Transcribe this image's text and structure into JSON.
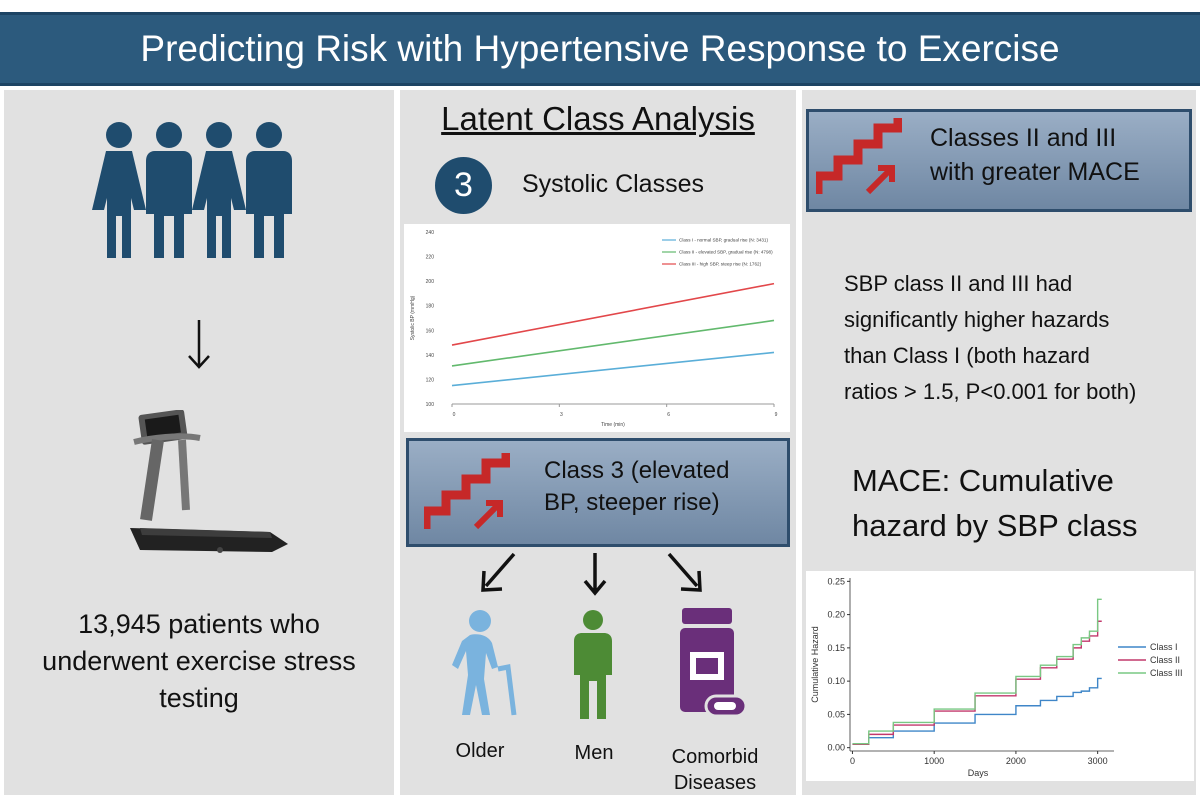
{
  "header": {
    "title": "Predicting Risk with Hypertensive Response to Exercise"
  },
  "left": {
    "caption_lines": [
      "13,945 patients who",
      "underwent exercise stress",
      "testing"
    ]
  },
  "middle": {
    "heading": "Latent Class Analysis",
    "class_count": "3",
    "class_label": "Systolic Classes",
    "callout_lines": [
      "Class 3 (elevated",
      "BP, steeper rise)"
    ],
    "groups": [
      "Older",
      "Men",
      "Comorbid",
      "Diseases"
    ]
  },
  "right": {
    "callout_lines": [
      "Classes II and III",
      "with greater MACE"
    ],
    "findings_lines": [
      "SBP class II and III had",
      "significantly higher hazards",
      "than Class I (both hazard",
      "ratios > 1.5, P<0.001 for both)"
    ],
    "chart_heading_lines": [
      "MACE: Cumulative",
      "hazard by SBP class"
    ]
  },
  "colors": {
    "banner": "#2c5a7d",
    "class1": "#5aaed8",
    "class2": "#62b96d",
    "class3": "#e2474a",
    "hz1": "#3f86c8",
    "hz2": "#c2386c",
    "hz3": "#79c883"
  },
  "chart_data": [
    {
      "type": "line",
      "title": "",
      "xlabel": "Time (min)",
      "ylabel": "Systolic BP (mmHg)",
      "x_ticks": [
        "0",
        "3",
        "6",
        "9"
      ],
      "y_ticks": [
        "100",
        "120",
        "140",
        "160",
        "180",
        "200",
        "220",
        "240"
      ],
      "xlim": [
        0,
        9
      ],
      "ylim": [
        100,
        240
      ],
      "x": [
        0,
        9
      ],
      "series": [
        {
          "name": "Class I - normal SBP, gradual rise (N: 3431)",
          "values": [
            115,
            142
          ]
        },
        {
          "name": "Class II - elevated SBP, gradual rise (N: 4798)",
          "values": [
            131,
            168
          ]
        },
        {
          "name": "Class III - high SBP, steep rise (N: 1762)",
          "values": [
            148,
            198
          ]
        }
      ]
    },
    {
      "type": "line",
      "title": "",
      "xlabel": "Days",
      "ylabel": "Cumulative Hazard",
      "x_ticks": [
        "0",
        "1000",
        "2000",
        "3000"
      ],
      "y_ticks": [
        "0.00",
        "0.05",
        "0.10",
        "0.15",
        "0.20",
        "0.25"
      ],
      "xlim": [
        -30,
        3200
      ],
      "ylim": [
        -0.005,
        0.255
      ],
      "x": [
        0,
        200,
        500,
        1000,
        1500,
        2000,
        2300,
        2500,
        2700,
        2800,
        2900,
        3000,
        3050
      ],
      "series": [
        {
          "name": "Class I",
          "values": [
            0.005,
            0.015,
            0.025,
            0.037,
            0.05,
            0.063,
            0.071,
            0.077,
            0.083,
            0.085,
            0.09,
            0.104,
            0.104
          ]
        },
        {
          "name": "Class II",
          "values": [
            0.005,
            0.02,
            0.034,
            0.055,
            0.078,
            0.103,
            0.12,
            0.133,
            0.15,
            0.16,
            0.168,
            0.19,
            0.19
          ]
        },
        {
          "name": "Class III",
          "values": [
            0.006,
            0.025,
            0.038,
            0.058,
            0.082,
            0.107,
            0.124,
            0.137,
            0.155,
            0.165,
            0.175,
            0.223,
            0.223
          ]
        }
      ]
    }
  ]
}
